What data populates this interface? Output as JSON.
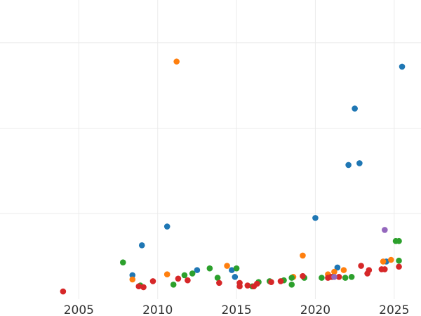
{
  "chart_data": {
    "type": "scatter",
    "title": "",
    "xlabel": "",
    "ylabel": "",
    "xlim": [
      2000.0,
      2026.7
    ],
    "ylim": [
      0,
      3.5
    ],
    "grid": true,
    "x_ticks": [
      {
        "value": 2005,
        "label": "2005"
      },
      {
        "value": 2010,
        "label": "2010"
      },
      {
        "value": 2015,
        "label": "2015"
      },
      {
        "value": 2020,
        "label": "2020"
      },
      {
        "value": 2025,
        "label": "2025"
      }
    ],
    "y_gridlines": [
      1,
      2,
      3
    ],
    "series": [
      {
        "color": "#1f77b4",
        "points": [
          [
            2008.4,
            0.28
          ],
          [
            2009.0,
            0.63
          ],
          [
            2010.6,
            0.85
          ],
          [
            2012.5,
            0.34
          ],
          [
            2014.7,
            0.34
          ],
          [
            2014.9,
            0.26
          ],
          [
            2020.0,
            0.95
          ],
          [
            2021.4,
            0.37
          ],
          [
            2022.1,
            1.57
          ],
          [
            2022.5,
            2.23
          ],
          [
            2022.8,
            1.59
          ],
          [
            2024.5,
            0.44
          ],
          [
            2025.5,
            2.72
          ]
        ]
      },
      {
        "color": "#ff7f0e",
        "points": [
          [
            2008.4,
            0.23
          ],
          [
            2010.6,
            0.29
          ],
          [
            2011.2,
            2.78
          ],
          [
            2014.4,
            0.39
          ],
          [
            2018.6,
            0.26
          ],
          [
            2019.2,
            0.51
          ],
          [
            2020.8,
            0.29
          ],
          [
            2021.2,
            0.32
          ],
          [
            2021.8,
            0.34
          ],
          [
            2024.3,
            0.44
          ],
          [
            2024.8,
            0.46
          ]
        ]
      },
      {
        "color": "#2ca02c",
        "points": [
          [
            2007.8,
            0.43
          ],
          [
            2008.9,
            0.16
          ],
          [
            2011.0,
            0.17
          ],
          [
            2011.7,
            0.28
          ],
          [
            2012.2,
            0.3
          ],
          [
            2013.3,
            0.36
          ],
          [
            2013.8,
            0.25
          ],
          [
            2015.0,
            0.36
          ],
          [
            2016.0,
            0.15
          ],
          [
            2016.4,
            0.2
          ],
          [
            2017.1,
            0.21
          ],
          [
            2018.0,
            0.22
          ],
          [
            2018.5,
            0.25
          ],
          [
            2018.5,
            0.17
          ],
          [
            2019.3,
            0.25
          ],
          [
            2020.4,
            0.25
          ],
          [
            2021.1,
            0.26
          ],
          [
            2021.9,
            0.25
          ],
          [
            2022.3,
            0.26
          ],
          [
            2025.1,
            0.68
          ],
          [
            2025.3,
            0.68
          ],
          [
            2025.3,
            0.45
          ]
        ]
      },
      {
        "color": "#d62728",
        "points": [
          [
            2004.0,
            0.09
          ],
          [
            2008.8,
            0.15
          ],
          [
            2009.1,
            0.14
          ],
          [
            2009.7,
            0.21
          ],
          [
            2011.3,
            0.24
          ],
          [
            2011.9,
            0.22
          ],
          [
            2013.9,
            0.19
          ],
          [
            2015.2,
            0.19
          ],
          [
            2015.2,
            0.15
          ],
          [
            2015.7,
            0.16
          ],
          [
            2016.1,
            0.15
          ],
          [
            2016.3,
            0.18
          ],
          [
            2017.2,
            0.2
          ],
          [
            2017.8,
            0.21
          ],
          [
            2019.2,
            0.27
          ],
          [
            2020.8,
            0.25
          ],
          [
            2021.0,
            0.26
          ],
          [
            2021.5,
            0.26
          ],
          [
            2022.9,
            0.39
          ],
          [
            2023.3,
            0.3
          ],
          [
            2023.4,
            0.34
          ],
          [
            2024.2,
            0.35
          ],
          [
            2024.4,
            0.35
          ],
          [
            2025.3,
            0.38
          ]
        ]
      },
      {
        "color": "#9467bd",
        "points": [
          [
            2021.2,
            0.26
          ],
          [
            2024.4,
            0.81
          ]
        ]
      }
    ]
  }
}
